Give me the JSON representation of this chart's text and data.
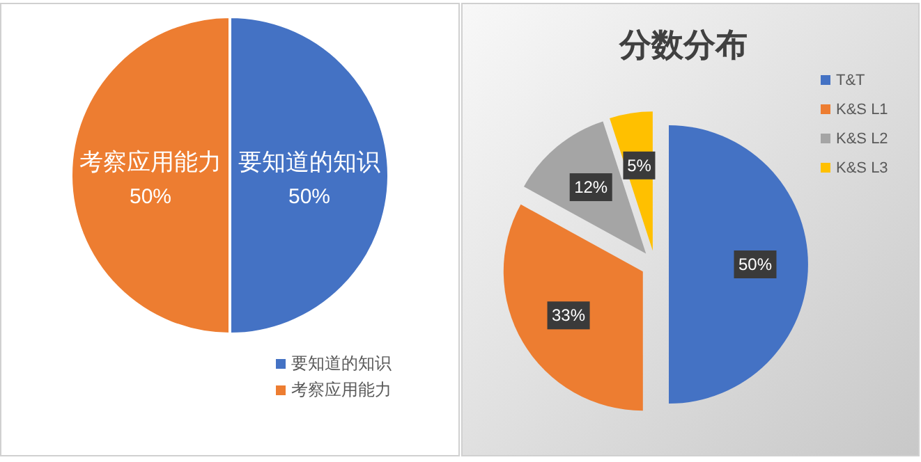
{
  "chart_data": [
    {
      "type": "pie",
      "categories": [
        "要知道的知识",
        "考察应用能力"
      ],
      "values": [
        50,
        50
      ],
      "colors": [
        "#4472c4",
        "#ed7d31"
      ],
      "value_labels": [
        "50%",
        "50%"
      ],
      "legend": "bottom right"
    },
    {
      "type": "pie",
      "title": "分数分布",
      "categories": [
        "T&T",
        "K&S L1",
        "K&S L2",
        "K&S L3"
      ],
      "values": [
        50,
        33,
        12,
        5
      ],
      "colors": [
        "#4472c4",
        "#ed7d31",
        "#a5a5a5",
        "#ffc000"
      ],
      "value_labels": [
        "50%",
        "33%",
        "12%",
        "5%"
      ],
      "legend": "top right"
    }
  ]
}
